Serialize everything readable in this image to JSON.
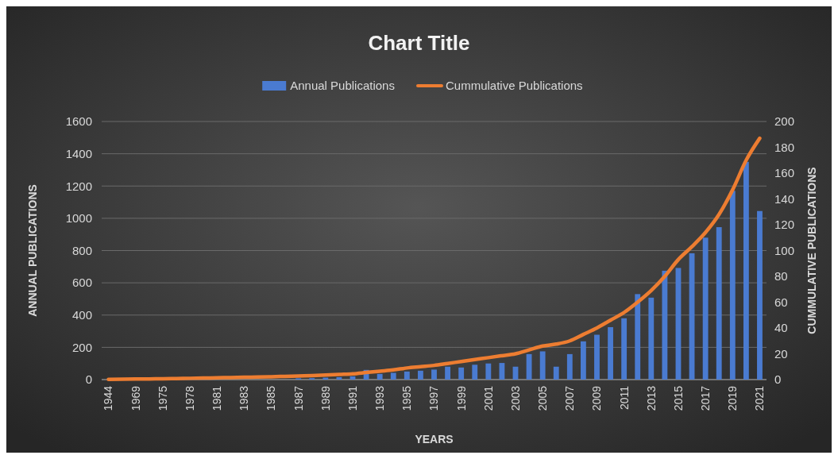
{
  "chart_data": {
    "type": "bar",
    "title": "Chart Title",
    "xlabel": "YEARS",
    "ylabel": "ANNUAL PUBLICATIONS",
    "y2label": "CUMMULATIVE PUBLICATIONS",
    "categories": [
      "1944",
      null,
      "1969",
      null,
      "1975",
      null,
      "1978",
      null,
      "1981",
      null,
      "1983",
      null,
      "1985",
      null,
      "1987",
      null,
      "1989",
      null,
      "1991",
      null,
      "1993",
      null,
      "1995",
      null,
      "1997",
      null,
      "1999",
      null,
      "2001",
      null,
      "2003",
      null,
      "2005",
      null,
      "2007",
      null,
      "2009",
      null,
      "2011",
      null,
      "2013",
      null,
      "2015",
      null,
      "2017",
      null,
      "2019",
      null,
      "2021"
    ],
    "series": [
      {
        "name": "Annual Publications",
        "color": "#4a7bd1",
        "values": [
          null,
          null,
          null,
          null,
          null,
          null,
          null,
          null,
          null,
          null,
          null,
          null,
          null,
          null,
          8,
          9,
          12,
          15,
          20,
          60,
          35,
          42,
          50,
          55,
          62,
          80,
          75,
          92,
          100,
          103,
          80,
          158,
          175,
          80,
          158,
          237,
          278,
          325,
          380,
          530,
          508,
          675,
          692,
          783,
          880,
          945,
          1170,
          1350,
          1045
        ]
      },
      {
        "name": "Cummulative Publications",
        "type": "line",
        "axis": "y2",
        "color": "#ed7d31",
        "values": [
          0.2,
          0.3,
          0.4,
          0.5,
          0.6,
          0.8,
          1,
          1.2,
          1.4,
          1.6,
          1.8,
          2,
          2.2,
          2.5,
          2.8,
          3.1,
          3.5,
          4,
          4.5,
          5.5,
          6.5,
          7.5,
          9,
          10,
          11,
          12.5,
          14,
          15.5,
          17,
          18.5,
          20,
          23,
          26,
          27.5,
          30,
          35,
          40,
          46,
          52,
          60,
          69,
          80,
          93,
          103,
          114,
          128,
          147,
          170,
          187
        ]
      }
    ],
    "ylim": [
      0,
      1600
    ],
    "yticks": [
      0,
      200,
      400,
      600,
      800,
      1000,
      1200,
      1400,
      1600
    ],
    "y2lim": [
      0,
      200
    ],
    "y2ticks": [
      0,
      20,
      40,
      60,
      80,
      100,
      120,
      140,
      160,
      180,
      200
    ],
    "grid": "y",
    "legend": "top",
    "line_style": "solid",
    "marker": "none"
  }
}
